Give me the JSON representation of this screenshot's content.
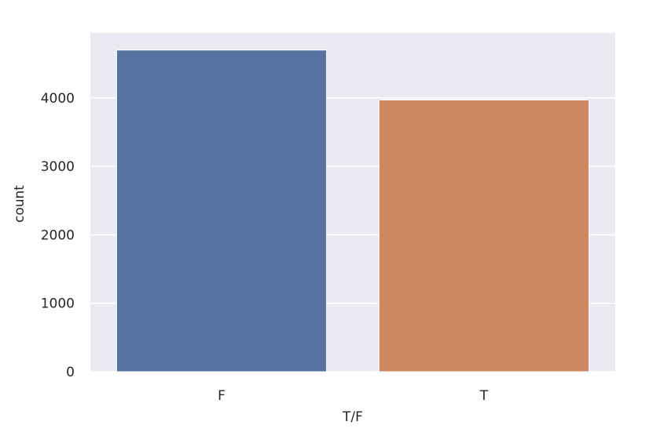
{
  "chart_data": {
    "type": "bar",
    "categories": [
      "F",
      "T"
    ],
    "values": [
      4700,
      3970
    ],
    "xlabel": "T/F",
    "ylabel": "count",
    "ylim": [
      0,
      4950
    ],
    "yticks": [
      0,
      1000,
      2000,
      3000,
      4000
    ],
    "grid": true,
    "colors": [
      "#5572a1",
      "#cd8862"
    ],
    "background": "#eaeaf2",
    "grid_color": "#ffffff"
  }
}
